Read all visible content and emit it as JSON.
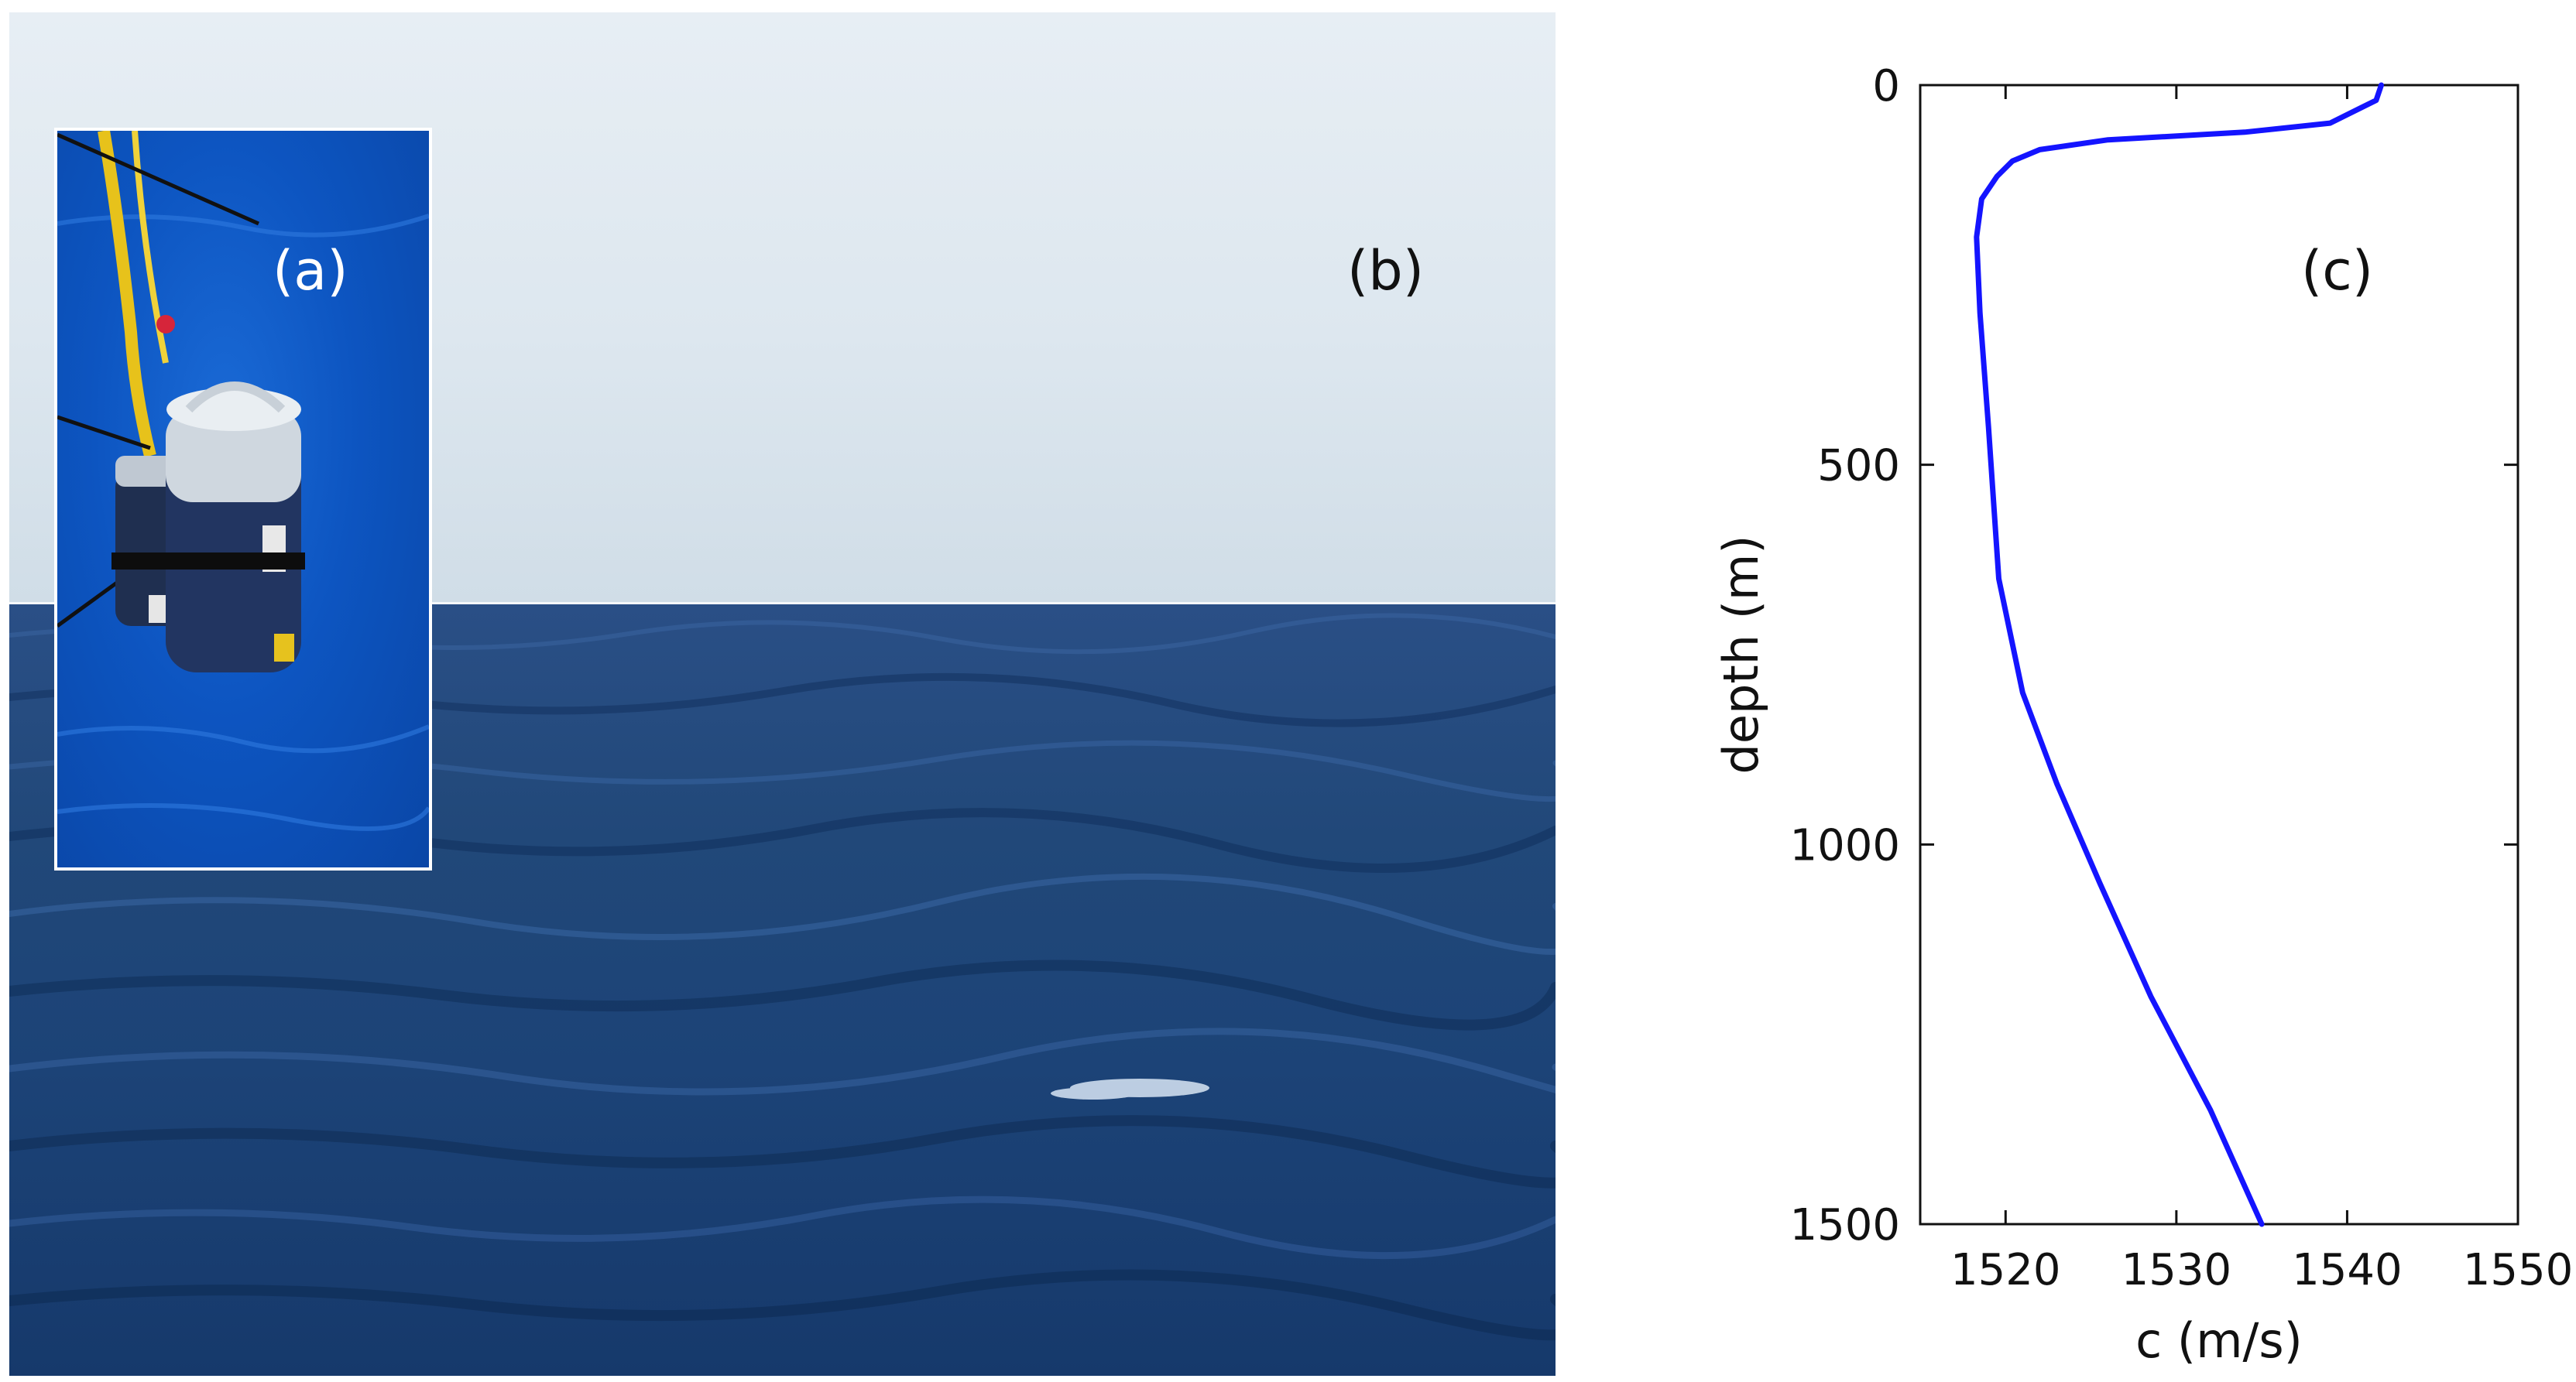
{
  "panels": {
    "a": {
      "label": "(a)"
    },
    "b": {
      "label": "(b)"
    },
    "c": {
      "label": "(c)"
    }
  },
  "colors": {
    "line": "#1414ff",
    "sea": "#1f4679",
    "sky": "#dfe8f0",
    "inset_water": "#0d55c1"
  },
  "chart_data": {
    "type": "line",
    "title": "",
    "xlabel": "c (m/s)",
    "ylabel": "depth (m)",
    "xlim": [
      1515,
      1550
    ],
    "ylim": [
      0,
      1500
    ],
    "y_inverted": true,
    "grid": false,
    "xticks": [
      1520,
      1530,
      1540,
      1550
    ],
    "yticks": [
      0,
      500,
      1000,
      1500
    ],
    "series": [
      {
        "x": [
          1542.0,
          1541.7,
          1539.0,
          1534.0,
          1526.0,
          1522.0,
          1520.4,
          1519.5,
          1518.6,
          1518.3,
          1518.5,
          1519.0,
          1519.6,
          1521.0,
          1523.0,
          1525.5,
          1528.5,
          1532.0,
          1535.0
        ],
        "y": [
          0,
          20,
          50,
          62,
          72,
          85,
          100,
          120,
          150,
          200,
          300,
          450,
          650,
          800,
          920,
          1050,
          1200,
          1350,
          1500
        ]
      }
    ]
  }
}
